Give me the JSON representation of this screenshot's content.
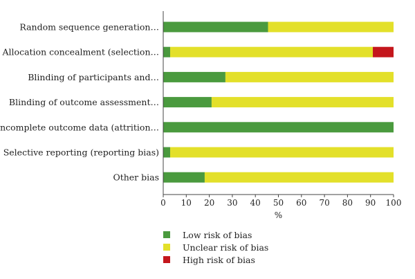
{
  "chart_data": {
    "type": "bar",
    "orientation": "horizontal",
    "stacked": true,
    "categories": [
      "Random sequence generation…",
      "Allocation concealment (selection…",
      "Blinding of participants and…",
      "Blinding of outcome assessment…",
      "Incomplete outcome data (attrition…",
      "Selective reporting (reporting bias)",
      "Other bias"
    ],
    "series": [
      {
        "name": "Low risk of bias",
        "color": "#4a9a3e",
        "values": [
          45.5,
          3,
          27,
          21,
          100,
          3,
          18
        ]
      },
      {
        "name": "Unclear risk of bias",
        "color": "#e3e02a",
        "values": [
          54.5,
          88,
          73,
          79,
          0,
          97,
          82
        ]
      },
      {
        "name": "High risk of bias",
        "color": "#c4161c",
        "values": [
          0,
          9,
          0,
          0,
          0,
          0,
          0
        ]
      }
    ],
    "xlim": [
      0,
      100
    ],
    "xticks": [
      0,
      10,
      20,
      30,
      40,
      50,
      60,
      70,
      80,
      90,
      100
    ],
    "xlabel": "%",
    "legend_position": "bottom"
  }
}
